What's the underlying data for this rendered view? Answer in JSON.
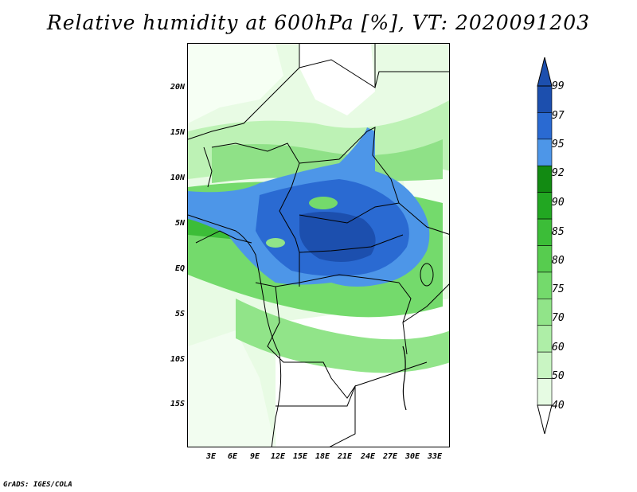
{
  "title": "Relative humidity at 600hPa [%], VT: 2020091203",
  "credit": "GrADS: IGES/COLA",
  "lat_labels": [
    "20N",
    "15N",
    "10N",
    "5N",
    "EQ",
    "5S",
    "10S",
    "15S"
  ],
  "lon_labels": [
    "3E",
    "6E",
    "9E",
    "12E",
    "15E",
    "18E",
    "21E",
    "24E",
    "27E",
    "30E",
    "33E"
  ],
  "colorbar": {
    "levels": [
      "40",
      "50",
      "60",
      "70",
      "75",
      "80",
      "85",
      "90",
      "92",
      "95",
      "97",
      "99"
    ],
    "colors": [
      "#ffffff",
      "#e6fbe3",
      "#c9f5c3",
      "#aeeea7",
      "#91e489",
      "#74da6c",
      "#57cc4f",
      "#3cbd38",
      "#22a722",
      "#128a12",
      "#4d96e8",
      "#2a6ad2",
      "#1c4fae"
    ]
  }
}
